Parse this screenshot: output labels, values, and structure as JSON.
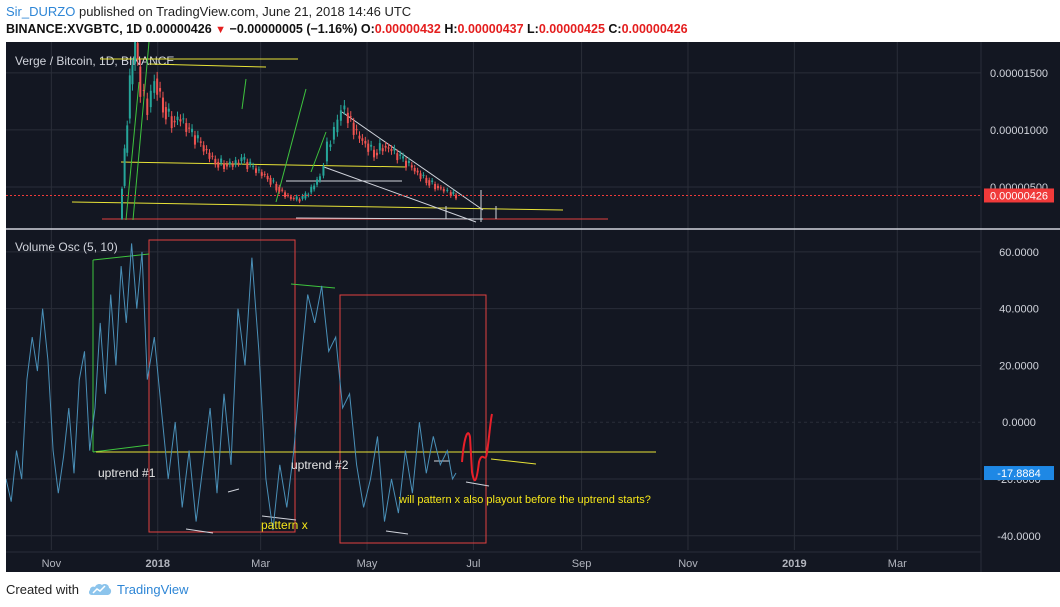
{
  "header": {
    "author": "Sir_DURZO",
    "published": "published on TradingView.com, June 21, 2018 14:46 UTC",
    "symbol": "BINANCE:XVGBTC, 1D",
    "price": "0.00000426",
    "change": "−0.00000005 (−1.16%)",
    "o_label": "O:",
    "o_value": "0.00000432",
    "h_label": "H:",
    "h_value": "0.00000437",
    "l_label": "L:",
    "l_value": "0.00000425",
    "c_label": "C:",
    "c_value": "0.00000426",
    "down_icon": "triangle-down-icon"
  },
  "price_pane": {
    "title": "Verge / Bitcoin, 1D, BINANCE",
    "last_price_label": "0.00000426",
    "y_ticks": [
      "0.00001500",
      "0.00001000",
      "0.00000500"
    ]
  },
  "osc_pane": {
    "title": "Volume Osc (5, 10)",
    "last_value_label": "-17.8884",
    "y_ticks": [
      "60.0000",
      "40.0000",
      "20.0000",
      "0.0000",
      "-20.0000",
      "-40.0000"
    ],
    "annotations": {
      "uptrend1": "uptrend #1",
      "uptrend2": "uptrend #2",
      "pattern": "pattern x",
      "question": "will pattern x also playout before the uptrend starts?"
    }
  },
  "x_ticks": [
    "Nov",
    "2018",
    "Mar",
    "May",
    "Jul",
    "Sep",
    "Nov",
    "2019",
    "Mar"
  ],
  "footer": {
    "created": "Created with",
    "brand": "TradingView",
    "logo_icon": "tradingview-cloud-icon"
  },
  "colors": {
    "background": "#131722",
    "grid": "#2a2e39",
    "up": "#26a69a",
    "down": "#ef5350",
    "osc_line": "#4a90b8",
    "last_price": "#f03a3a",
    "osc_label": "#1e88e5",
    "annotation": "#f5e61a"
  },
  "chart_data": [
    {
      "type": "candlestick",
      "title": "Verge / Bitcoin, 1D, BINANCE",
      "xlabel": "",
      "ylabel": "",
      "x_range": [
        "2017-10-06",
        "2019-04-18"
      ],
      "ylim": [
        1.5e-06,
        1.77e-05
      ],
      "last": 4.26e-06,
      "series": [
        {
          "values": [
            [
              "2017-12-10",
              2.2e-06
            ],
            [
              "2017-12-13",
              8e-06
            ],
            [
              "2017-12-16",
              1.4e-05
            ],
            [
              "2017-12-19",
              1.76e-05
            ],
            [
              "2017-12-22",
              1.35e-05
            ],
            [
              "2017-12-26",
              1.2e-05
            ],
            [
              "2017-12-30",
              1.45e-05
            ],
            [
              "2018-01-04",
              1.2e-05
            ],
            [
              "2018-01-09",
              1.08e-05
            ],
            [
              "2018-01-14",
              1.1e-05
            ],
            [
              "2018-01-19",
              9.8e-06
            ],
            [
              "2018-01-24",
              9e-06
            ],
            [
              "2018-01-29",
              8e-06
            ],
            [
              "2018-02-03",
              7.2e-06
            ],
            [
              "2018-02-08",
              7e-06
            ],
            [
              "2018-02-13",
              7e-06
            ],
            [
              "2018-02-18",
              7.4e-06
            ],
            [
              "2018-02-23",
              6.8e-06
            ],
            [
              "2018-02-28",
              6.3e-06
            ],
            [
              "2018-03-05",
              5.8e-06
            ],
            [
              "2018-03-10",
              5e-06
            ],
            [
              "2018-03-15",
              4.3e-06
            ],
            [
              "2018-03-20",
              3.9e-06
            ],
            [
              "2018-03-25",
              4e-06
            ],
            [
              "2018-03-30",
              4.8e-06
            ],
            [
              "2018-04-04",
              6e-06
            ],
            [
              "2018-04-08",
              8.5e-06
            ],
            [
              "2018-04-12",
              9.8e-06
            ],
            [
              "2018-04-16",
              1.18e-05
            ],
            [
              "2018-04-20",
              1.12e-05
            ],
            [
              "2018-04-25",
              9.5e-06
            ],
            [
              "2018-04-30",
              8.8e-06
            ],
            [
              "2018-05-05",
              8e-06
            ],
            [
              "2018-05-10",
              8.6e-06
            ],
            [
              "2018-05-15",
              8.2e-06
            ],
            [
              "2018-05-20",
              7.5e-06
            ],
            [
              "2018-05-25",
              6.9e-06
            ],
            [
              "2018-05-30",
              6.2e-06
            ],
            [
              "2018-06-04",
              5.6e-06
            ],
            [
              "2018-06-09",
              5.1e-06
            ],
            [
              "2018-06-14",
              4.7e-06
            ],
            [
              "2018-06-18",
              4.4e-06
            ],
            [
              "2018-06-21",
              4.26e-06
            ]
          ]
        }
      ]
    },
    {
      "type": "line",
      "title": "Volume Osc (5, 10)",
      "xlabel": "",
      "ylabel": "",
      "ylim": [
        -45,
        67
      ],
      "last": -17.8884,
      "series": [
        {
          "name": "Volume Osc",
          "values": [
            [
              "2017-10-06",
              -20
            ],
            [
              "2017-10-09",
              -28
            ],
            [
              "2017-10-12",
              -10
            ],
            [
              "2017-10-15",
              -20
            ],
            [
              "2017-10-18",
              15
            ],
            [
              "2017-10-21",
              30
            ],
            [
              "2017-10-24",
              18
            ],
            [
              "2017-10-27",
              40
            ],
            [
              "2017-10-30",
              22
            ],
            [
              "2017-11-02",
              -10
            ],
            [
              "2017-11-05",
              -25
            ],
            [
              "2017-11-08",
              -12
            ],
            [
              "2017-11-11",
              5
            ],
            [
              "2017-11-14",
              -18
            ],
            [
              "2017-11-17",
              15
            ],
            [
              "2017-11-20",
              25
            ],
            [
              "2017-11-23",
              -10
            ],
            [
              "2017-11-26",
              5
            ],
            [
              "2017-11-29",
              35
            ],
            [
              "2017-12-02",
              10
            ],
            [
              "2017-12-05",
              45
            ],
            [
              "2017-12-08",
              20
            ],
            [
              "2017-12-11",
              55
            ],
            [
              "2017-12-14",
              35
            ],
            [
              "2017-12-17",
              63
            ],
            [
              "2017-12-20",
              40
            ],
            [
              "2017-12-23",
              60
            ],
            [
              "2017-12-26",
              15
            ],
            [
              "2017-12-30",
              30
            ],
            [
              "2018-01-03",
              5
            ],
            [
              "2018-01-07",
              -20
            ],
            [
              "2018-01-11",
              0
            ],
            [
              "2018-01-15",
              -30
            ],
            [
              "2018-01-19",
              -10
            ],
            [
              "2018-01-23",
              -35
            ],
            [
              "2018-01-27",
              -15
            ],
            [
              "2018-01-31",
              5
            ],
            [
              "2018-02-04",
              -25
            ],
            [
              "2018-02-08",
              10
            ],
            [
              "2018-02-12",
              -15
            ],
            [
              "2018-02-16",
              40
            ],
            [
              "2018-02-20",
              20
            ],
            [
              "2018-02-24",
              58
            ],
            [
              "2018-02-28",
              25
            ],
            [
              "2018-03-04",
              -20
            ],
            [
              "2018-03-08",
              -38
            ],
            [
              "2018-03-12",
              -15
            ],
            [
              "2018-03-16",
              -30
            ],
            [
              "2018-03-20",
              -10
            ],
            [
              "2018-03-24",
              20
            ],
            [
              "2018-03-28",
              45
            ],
            [
              "2018-04-01",
              35
            ],
            [
              "2018-04-05",
              48
            ],
            [
              "2018-04-09",
              25
            ],
            [
              "2018-04-13",
              30
            ],
            [
              "2018-04-17",
              5
            ],
            [
              "2018-04-21",
              10
            ],
            [
              "2018-04-25",
              -15
            ],
            [
              "2018-04-29",
              -30
            ],
            [
              "2018-05-03",
              -20
            ],
            [
              "2018-05-07",
              -5
            ],
            [
              "2018-05-11",
              -35
            ],
            [
              "2018-05-15",
              -20
            ],
            [
              "2018-05-19",
              -32
            ],
            [
              "2018-05-23",
              -10
            ],
            [
              "2018-05-27",
              -25
            ],
            [
              "2018-05-31",
              0
            ],
            [
              "2018-06-04",
              -18
            ],
            [
              "2018-06-08",
              -5
            ],
            [
              "2018-06-12",
              -15
            ],
            [
              "2018-06-16",
              -10
            ],
            [
              "2018-06-19",
              -20
            ],
            [
              "2018-06-21",
              -17.8884
            ]
          ]
        }
      ]
    }
  ]
}
